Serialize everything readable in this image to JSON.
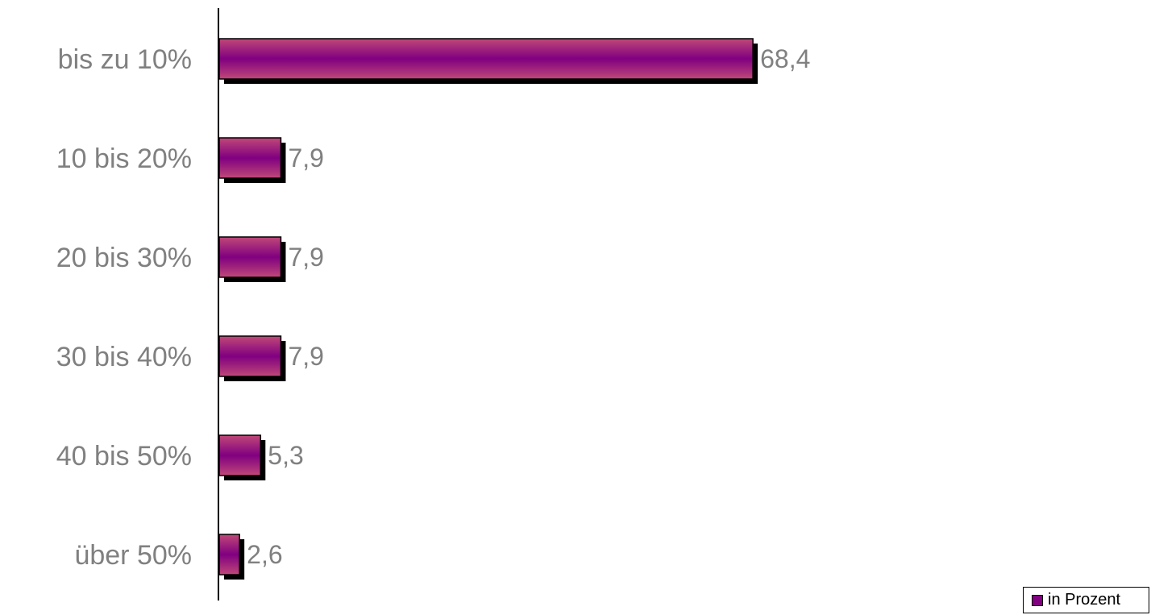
{
  "chart_data": {
    "type": "bar",
    "orientation": "horizontal",
    "categories": [
      "bis zu 10%",
      "10 bis 20%",
      "20 bis 30%",
      "30 bis 40%",
      "40 bis 50%",
      "über 50%"
    ],
    "series": [
      {
        "name": "in Prozent",
        "values": [
          68.4,
          7.9,
          7.9,
          7.9,
          5.3,
          2.6
        ]
      }
    ],
    "value_labels": [
      "68,4",
      "7,9",
      "7,9",
      "7,9",
      "5,3",
      "2,6"
    ],
    "xlim": [
      0,
      100
    ],
    "grid": false,
    "legend_position": "bottom-right",
    "colors": {
      "bar": "#800080",
      "bar_edge": "#c04878",
      "shadow": "#000000",
      "label": "#808080"
    }
  },
  "legend": {
    "label": "in Prozent"
  }
}
